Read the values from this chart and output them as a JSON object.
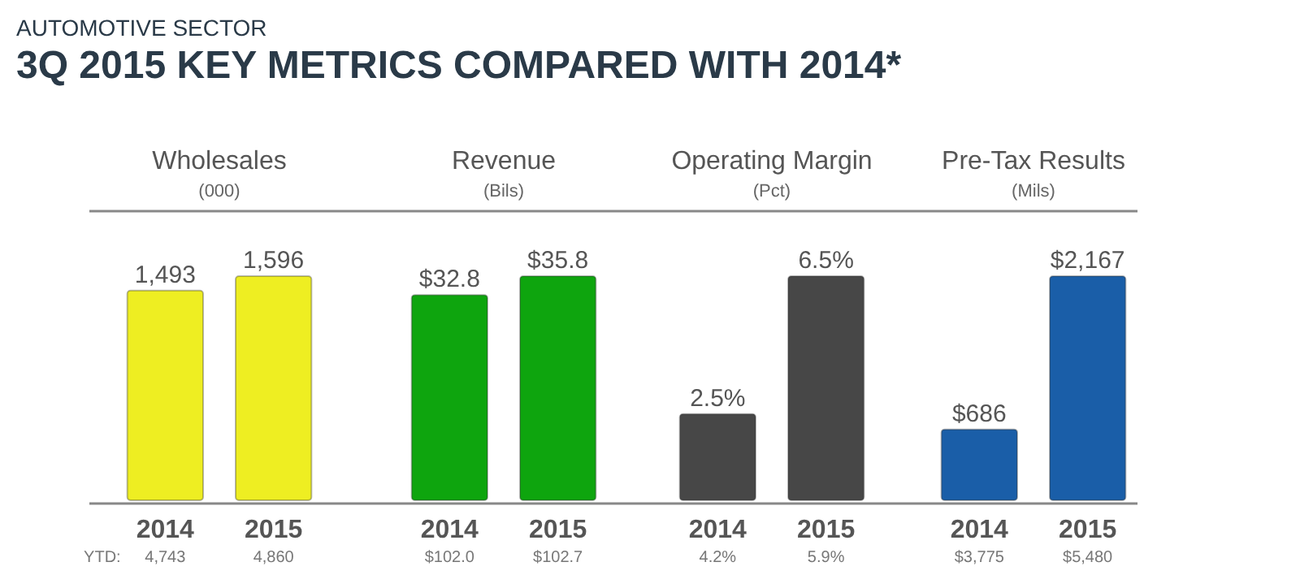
{
  "chart_data": [
    {
      "type": "bar",
      "title": "Wholesales",
      "subtitle": "(000)",
      "categories": [
        "2014",
        "2015"
      ],
      "values": [
        1493,
        1596
      ],
      "value_labels": [
        "1,493",
        "1,596"
      ],
      "color": "#eeee22",
      "tick_labels": "x",
      "annotations": [
        "AUTOMOTIVE SECTOR",
        "3Q 2015 KEY METRICS COMPARED WITH 2014*",
        "YTD:",
        "4,743",
        "4,860"
      ]
    },
    {
      "type": "bar",
      "title": "Revenue",
      "subtitle": "(Bils)",
      "categories": [
        "2014",
        "2015"
      ],
      "values": [
        32.8,
        35.8
      ],
      "value_labels": [
        "$32.8",
        "$35.8"
      ],
      "color": "#0ea50e",
      "tick_labels": "x",
      "annotations": [
        "$102.0",
        "$102.7"
      ]
    },
    {
      "type": "bar",
      "title": "Operating Margin",
      "subtitle": "(Pct)",
      "categories": [
        "2014",
        "2015"
      ],
      "values": [
        2.5,
        6.5
      ],
      "value_labels": [
        "2.5%",
        "6.5%"
      ],
      "color": "#474747",
      "tick_labels": "x",
      "annotations": [
        "4.2%",
        "5.9%"
      ]
    },
    {
      "type": "bar",
      "title": "Pre-Tax Results",
      "subtitle": "(Mils)",
      "categories": [
        "2014",
        "2015"
      ],
      "values": [
        686,
        2167
      ],
      "value_labels": [
        "$686",
        "$2,167"
      ],
      "color": "#1a5ea8",
      "tick_labels": "x",
      "annotations": [
        "$3,775",
        "$5,480"
      ]
    }
  ]
}
